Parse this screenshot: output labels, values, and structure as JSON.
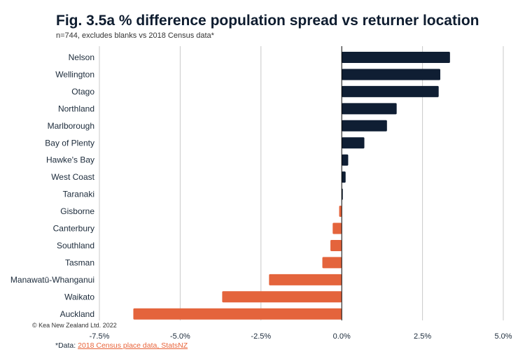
{
  "title": "Fig. 3.5a % difference population spread vs returner location",
  "subtitle": "n=744, excludes blanks vs 2018 Census data*",
  "copyright": "© Kea New Zealand Ltd. 2022",
  "footnote": {
    "prefix": "*Data: ",
    "link_text": "2018 Census place data, StatsNZ"
  },
  "colors": {
    "positive": "#0f1e33",
    "negative": "#e4643c",
    "grid": "#c8c8c8",
    "axis": "#000000"
  },
  "chart_data": {
    "type": "bar",
    "orientation": "horizontal",
    "categories": [
      "Nelson",
      "Wellington",
      "Otago",
      "Northland",
      "Marlborough",
      "Bay of Plenty",
      "Hawke's Bay",
      "West Coast",
      "Taranaki",
      "Gisborne",
      "Canterbury",
      "Southland",
      "Tasman",
      "Manawatū-Whanganui",
      "Waikato",
      "Auckland"
    ],
    "values": [
      3.35,
      3.05,
      3.0,
      1.7,
      1.4,
      0.7,
      0.2,
      0.12,
      0.03,
      -0.08,
      -0.28,
      -0.35,
      -0.6,
      -2.25,
      -3.7,
      -6.45
    ],
    "xlim": [
      -7.5,
      5.0
    ],
    "xticks": [
      -7.5,
      -5.0,
      -2.5,
      0.0,
      2.5,
      5.0
    ],
    "xtick_labels": [
      "-7.5%",
      "-5.0%",
      "-2.5%",
      "0.0%",
      "2.5%",
      "5.0%"
    ],
    "grid": true,
    "legend": "none"
  }
}
